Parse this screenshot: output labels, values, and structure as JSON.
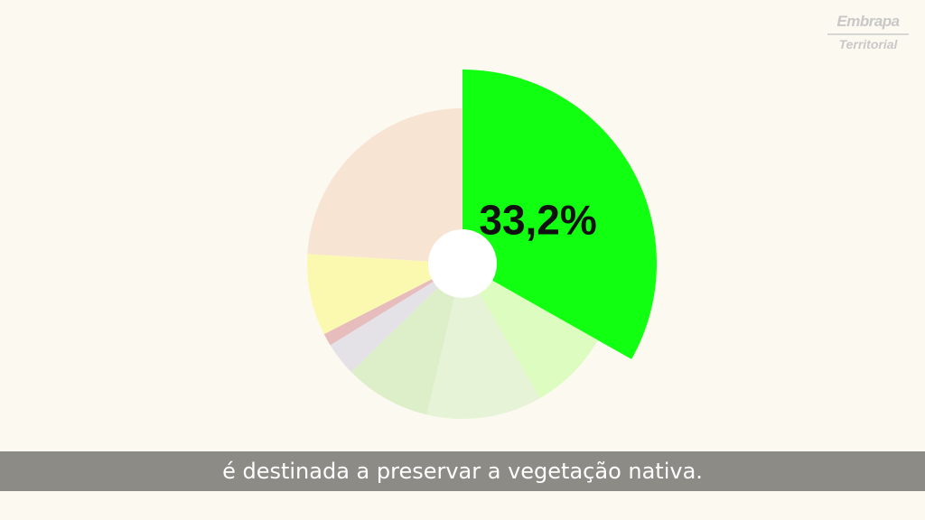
{
  "logo": {
    "brand": "Embrapa",
    "sub": "Territorial"
  },
  "caption": "é destinada a preservar a vegetação nativa.",
  "chart_data": {
    "type": "pie",
    "highlight_label": "33,2%",
    "highlight_index": 0,
    "start_angle_deg": -90,
    "slices": [
      {
        "value": 33.2,
        "color": "#11ff11"
      },
      {
        "value": 8.5,
        "color": "#ddfcc0"
      },
      {
        "value": 12.0,
        "color": "#e6f3d6"
      },
      {
        "value": 9.0,
        "color": "#dcefc9"
      },
      {
        "value": 3.5,
        "color": "#e4e2e6"
      },
      {
        "value": 1.3,
        "color": "#e6bcbc"
      },
      {
        "value": 8.5,
        "color": "#fbf9b0"
      },
      {
        "value": 24.0,
        "color": "#f8e4d2"
      }
    ],
    "background": "#fcf9f0"
  }
}
